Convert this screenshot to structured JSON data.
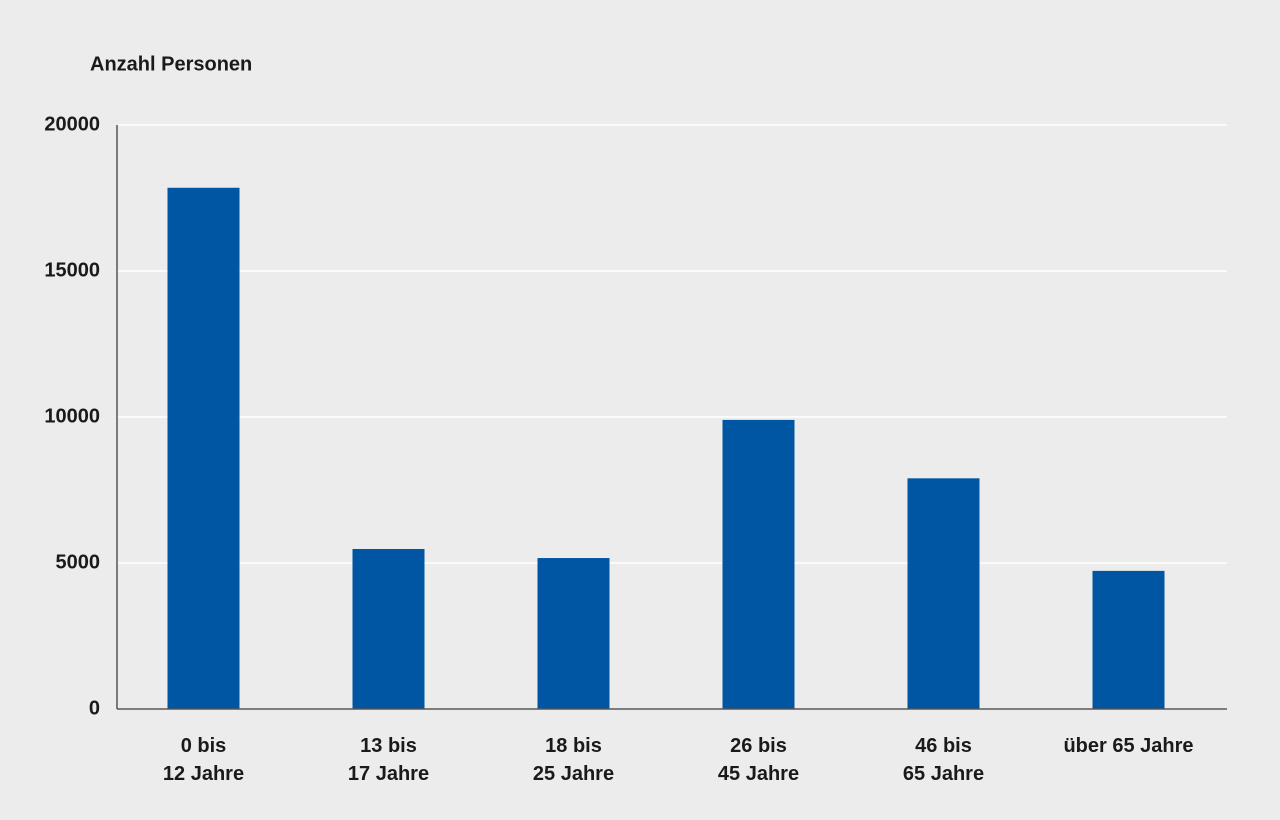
{
  "chart_data": {
    "type": "bar",
    "y_axis_title": "Anzahl Personen",
    "categories": [
      "0 bis\n12 Jahre",
      "13 bis\n17 Jahre",
      "18 bis\n25 Jahre",
      "26 bis\n45 Jahre",
      "46 bis\n65 Jahre",
      "über 65 Jahre"
    ],
    "values": [
      17850,
      5480,
      5170,
      9900,
      7900,
      4730
    ],
    "color": "#0056a3",
    "ylim": [
      0,
      20000
    ],
    "yticks": [
      0,
      5000,
      10000,
      15000,
      20000
    ],
    "grid": true
  }
}
